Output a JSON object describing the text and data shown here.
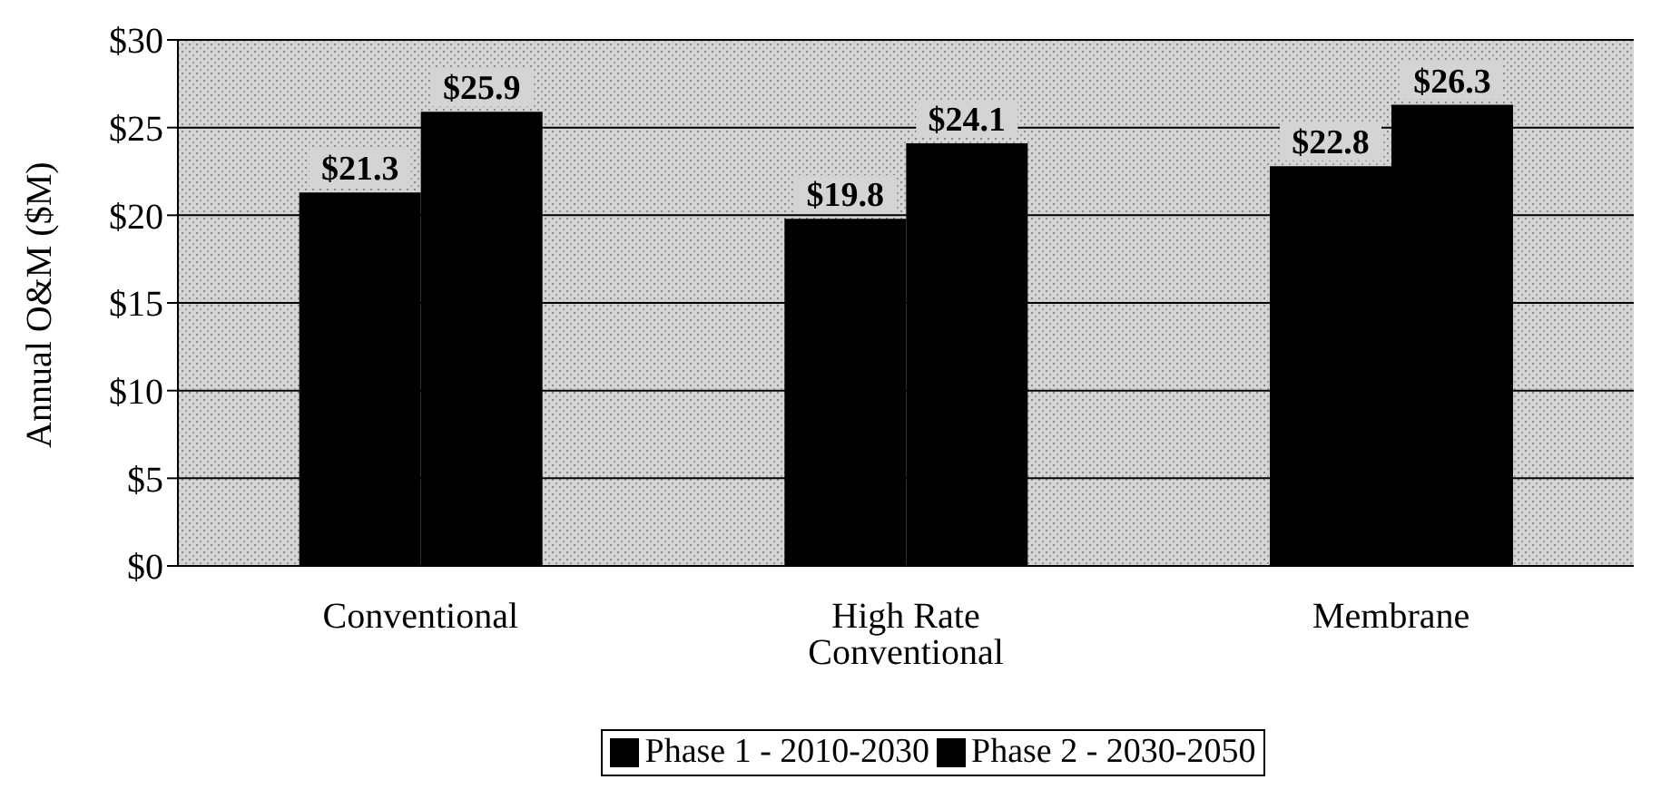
{
  "chart_data": {
    "type": "bar",
    "ylabel": "Annual O&M ($M)",
    "categories": [
      "Conventional",
      "High Rate Conventional",
      "Membrane"
    ],
    "series": [
      {
        "name": "Phase 1 - 2010-2030",
        "color": "#000000",
        "values": [
          21.3,
          19.8,
          22.8
        ],
        "value_labels": [
          "$21.3",
          "$19.8",
          "$22.8"
        ]
      },
      {
        "name": "Phase 2 - 2030-2050",
        "color": "#000000",
        "values": [
          25.9,
          24.1,
          26.3
        ],
        "value_labels": [
          "$25.9",
          "$24.1",
          "$26.3"
        ]
      }
    ],
    "ylim": [
      0,
      30
    ],
    "yticks": [
      {
        "value": 0,
        "label": "$0"
      },
      {
        "value": 5,
        "label": "$5"
      },
      {
        "value": 10,
        "label": "$10"
      },
      {
        "value": 15,
        "label": "$15"
      },
      {
        "value": 20,
        "label": "$20"
      },
      {
        "value": 25,
        "label": "$25"
      },
      {
        "value": 30,
        "label": "$30"
      }
    ],
    "grid": "y",
    "legend": "bottom"
  }
}
